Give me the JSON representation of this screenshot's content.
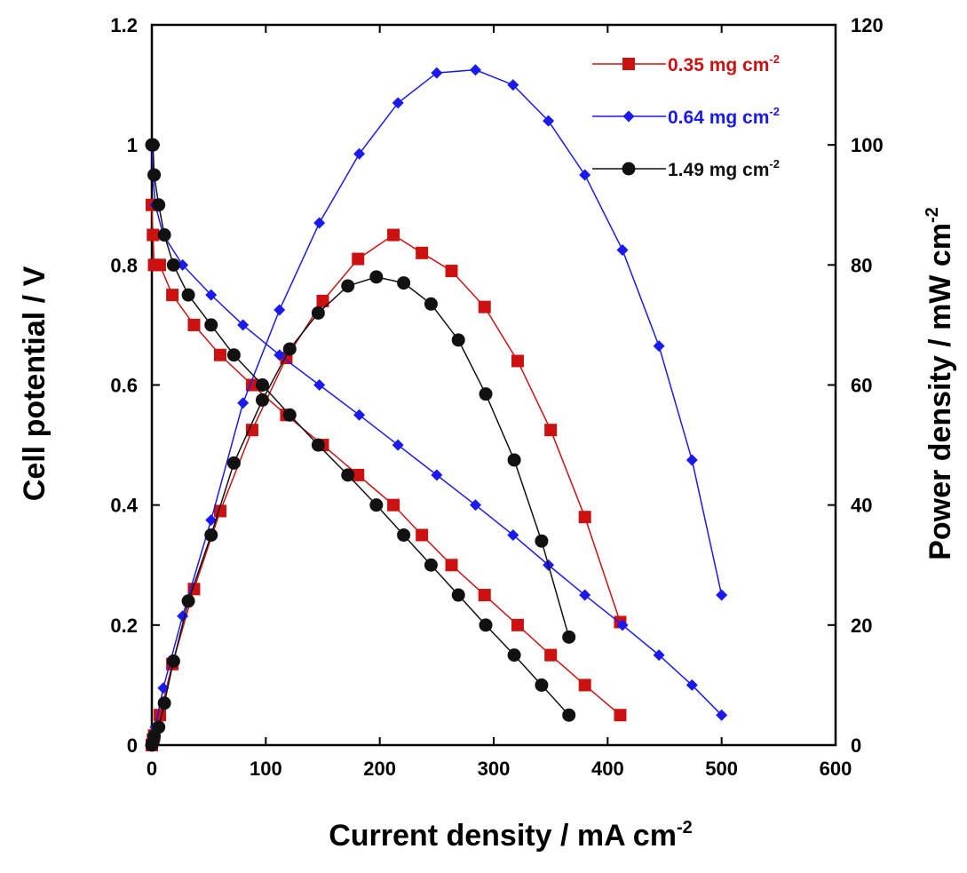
{
  "chart_data": {
    "type": "line",
    "xlabel": {
      "text": "Current density / mA cm",
      "sup": "-2"
    },
    "ylabel": {
      "text": "Cell potential / V"
    },
    "y2label": {
      "text": "Power density / mW cm",
      "sup": "-2"
    },
    "xlim": [
      0,
      600
    ],
    "ylim": [
      0,
      1.2
    ],
    "y2lim": [
      0,
      120
    ],
    "x_ticks": [
      "0",
      "100",
      "200",
      "300",
      "400",
      "500",
      "600"
    ],
    "y_ticks": [
      "0",
      "0.2",
      "0.4",
      "0.6",
      "0.8",
      "1",
      "1.2"
    ],
    "y2_ticks": [
      "0",
      "20",
      "40",
      "60",
      "80",
      "100",
      "120"
    ],
    "grid": false,
    "legend_position": "top-right",
    "series": [
      {
        "name": "0.35 mg cm",
        "name_sup": "-2",
        "color": "#cc1111",
        "marker": "square",
        "polarization": {
          "x": [
            0,
            1,
            2,
            7,
            18,
            37,
            60,
            88,
            118,
            150,
            181,
            212,
            237,
            263,
            292,
            321,
            350,
            380,
            411
          ],
          "y": [
            0.9,
            0.85,
            0.8,
            0.8,
            0.75,
            0.7,
            0.65,
            0.6,
            0.55,
            0.5,
            0.45,
            0.4,
            0.35,
            0.3,
            0.25,
            0.2,
            0.15,
            0.1,
            0.05
          ]
        },
        "power": {
          "x": [
            0,
            1,
            2,
            7,
            18,
            37,
            60,
            88,
            118,
            150,
            181,
            212,
            237,
            263,
            292,
            321,
            350,
            380,
            411
          ],
          "y": [
            0,
            0.9,
            1.6,
            5,
            13.5,
            26,
            39,
            52.5,
            64.5,
            74,
            81,
            85,
            82,
            79,
            73,
            64,
            52.5,
            38,
            20.5
          ]
        }
      },
      {
        "name": "0.64 mg cm",
        "name_sup": "-2",
        "color": "#1a1aee",
        "marker": "diamond",
        "polarization": {
          "x": [
            0,
            1,
            3,
            10,
            27,
            52,
            80,
            112,
            147,
            182,
            216,
            250,
            284,
            317,
            348,
            380,
            413,
            445,
            474,
            500
          ],
          "y": [
            1.0,
            0.95,
            0.9,
            0.85,
            0.8,
            0.75,
            0.7,
            0.65,
            0.6,
            0.55,
            0.5,
            0.45,
            0.4,
            0.35,
            0.3,
            0.25,
            0.2,
            0.15,
            0.1,
            0.05
          ]
        },
        "power": {
          "x": [
            0,
            1,
            3,
            10,
            27,
            52,
            80,
            112,
            147,
            182,
            216,
            250,
            284,
            317,
            348,
            380,
            413,
            445,
            474,
            500
          ],
          "y": [
            0,
            1,
            3,
            9.5,
            21.5,
            37.5,
            57,
            72.5,
            87,
            98.5,
            107,
            112,
            112.5,
            110,
            104,
            95,
            82.5,
            66.5,
            47.5,
            25
          ]
        }
      },
      {
        "name": "1.49 mg cm",
        "name_sup": "-2",
        "color": "#111111",
        "marker": "circle",
        "polarization": {
          "x": [
            0,
            1,
            2,
            6,
            11,
            19,
            32,
            52,
            72,
            97,
            121,
            146,
            172,
            197,
            221,
            245,
            269,
            293,
            318,
            342,
            366
          ],
          "y": [
            1.0,
            1.0,
            0.95,
            0.9,
            0.85,
            0.8,
            0.75,
            0.7,
            0.65,
            0.6,
            0.55,
            0.5,
            0.45,
            0.4,
            0.35,
            0.3,
            0.25,
            0.2,
            0.15,
            0.1,
            0.05
          ]
        },
        "power": {
          "x": [
            0,
            1,
            2,
            6,
            11,
            19,
            32,
            52,
            72,
            97,
            121,
            146,
            172,
            197,
            221,
            245,
            269,
            293,
            318,
            342,
            366
          ],
          "y": [
            0,
            0.5,
            1.5,
            3,
            7,
            14,
            24,
            35,
            47,
            57.5,
            66,
            72,
            76.5,
            78,
            77,
            73.5,
            67.5,
            58.5,
            47.5,
            34,
            18
          ]
        }
      }
    ]
  }
}
